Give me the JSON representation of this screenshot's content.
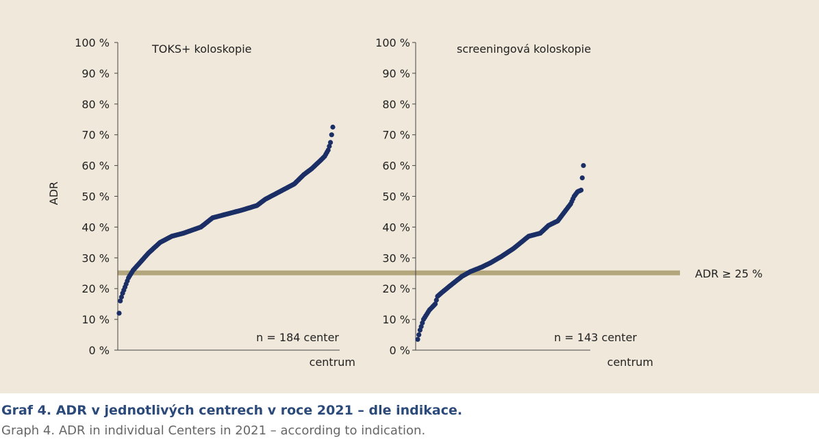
{
  "colors": {
    "panel_bg": "#f0e8da",
    "dot": "#1b2f66",
    "threshold": "#b3a57c",
    "caption_title": "#2b4a7a",
    "caption_sub": "#666666"
  },
  "threshold": {
    "value": 25,
    "label": "ADR  ≥ 25  %"
  },
  "ylabel": "ADR",
  "yticks": [
    "0 %",
    "10 %",
    "20 %",
    "30 %",
    "40 %",
    "50 %",
    "60 %",
    "70 %",
    "80 %",
    "90 %",
    "100 %"
  ],
  "caption": {
    "title": "Graf 4. ADR v jednotlivých centrech v roce 2021 – dle indikace.",
    "subtitle": "Graph 4. ADR in individual Centers in 2021 – according to indication."
  },
  "chart_data": [
    {
      "type": "scatter",
      "title": "TOKS+ koloskopie",
      "xlabel": "centrum",
      "ylabel": "ADR",
      "annotation": "n = 184 center",
      "n": 184,
      "ylim": [
        0,
        100
      ],
      "curve_knots": [
        [
          0,
          12
        ],
        [
          1,
          16
        ],
        [
          3,
          18.5
        ],
        [
          5,
          20.5
        ],
        [
          8,
          23.5
        ],
        [
          12,
          26
        ],
        [
          18,
          28.5
        ],
        [
          25,
          31.5
        ],
        [
          35,
          35
        ],
        [
          45,
          37
        ],
        [
          55,
          38
        ],
        [
          70,
          40
        ],
        [
          80,
          43
        ],
        [
          90,
          44
        ],
        [
          105,
          45.5
        ],
        [
          118,
          47
        ],
        [
          125,
          49
        ],
        [
          140,
          52
        ],
        [
          150,
          54
        ],
        [
          158,
          57
        ],
        [
          165,
          59
        ],
        [
          172,
          61.5
        ],
        [
          176,
          63
        ],
        [
          179,
          65
        ],
        [
          181,
          67.5
        ],
        [
          182,
          70
        ],
        [
          183,
          72.5
        ],
        [
          184,
          75
        ]
      ]
    },
    {
      "type": "scatter",
      "title": "screeningová koloskopie",
      "xlabel": "centrum",
      "ylabel": "ADR",
      "annotation": "n = 143 center",
      "n": 143,
      "ylim": [
        0,
        100
      ],
      "curve_knots": [
        [
          0,
          3.5
        ],
        [
          2,
          6.5
        ],
        [
          5,
          10
        ],
        [
          10,
          13
        ],
        [
          15,
          15
        ],
        [
          17,
          17.5
        ],
        [
          20,
          18.5
        ],
        [
          28,
          21
        ],
        [
          38,
          24
        ],
        [
          45,
          25.5
        ],
        [
          55,
          27
        ],
        [
          63,
          28.5
        ],
        [
          72,
          30.5
        ],
        [
          82,
          33
        ],
        [
          95,
          37
        ],
        [
          105,
          38
        ],
        [
          112,
          40.5
        ],
        [
          120,
          42
        ],
        [
          124,
          44
        ],
        [
          128,
          46
        ],
        [
          131,
          47.5
        ],
        [
          134,
          50
        ],
        [
          137,
          51.5
        ],
        [
          140,
          52
        ],
        [
          142,
          60
        ]
      ]
    }
  ]
}
